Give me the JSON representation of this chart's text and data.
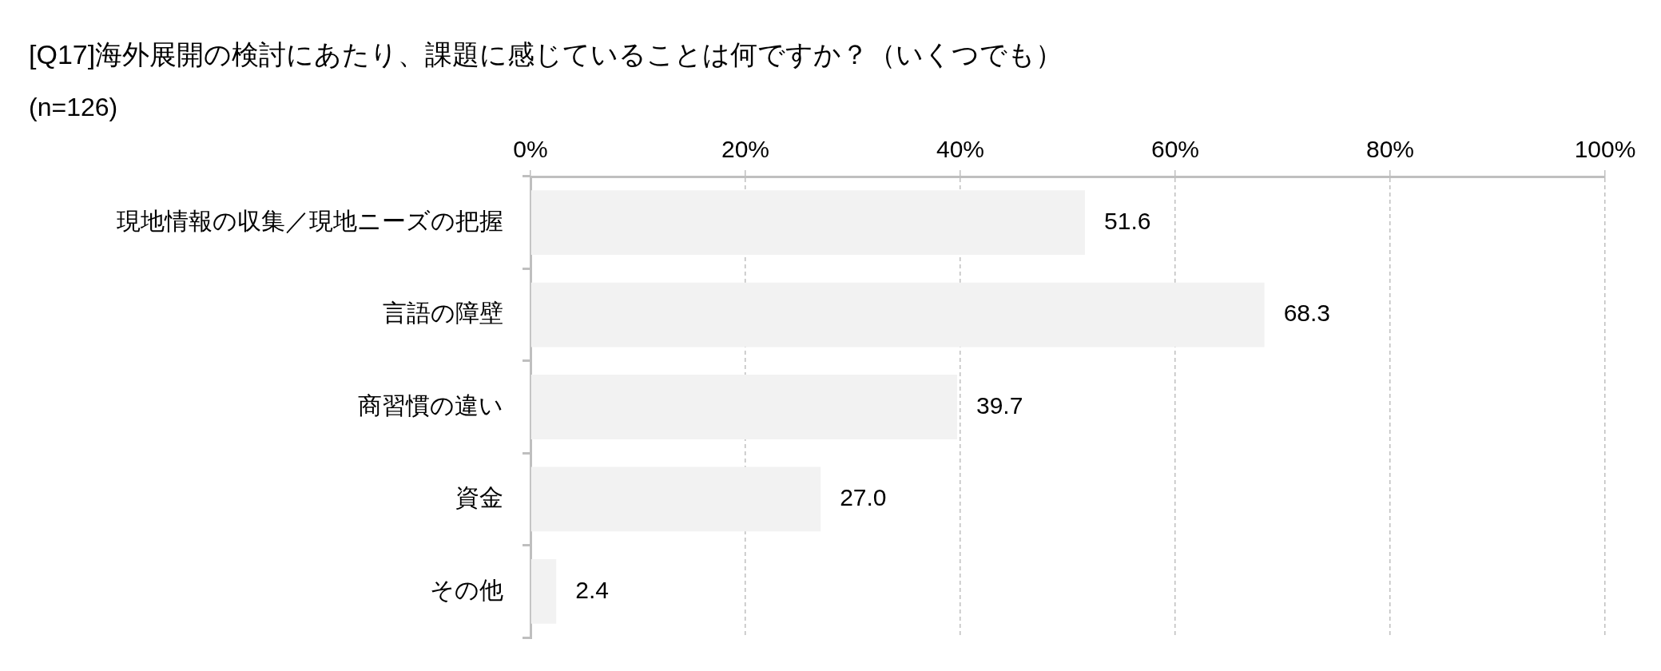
{
  "chart_data": {
    "type": "bar",
    "orientation": "horizontal",
    "title": "[Q17]海外展開の検討にあたり、課題に感じていることは何ですか？（いくつでも）",
    "subtitle": "(n=126)",
    "categories": [
      "現地情報の収集／現地ニーズの把握",
      "言語の障壁",
      "商習慣の違い",
      "資金",
      "その他"
    ],
    "values": [
      51.6,
      68.3,
      39.7,
      27.0,
      2.4
    ],
    "value_labels": [
      "51.6",
      "68.3",
      "39.7",
      "27.0",
      "2.4"
    ],
    "color": "#f2f2f2",
    "xlim": [
      0,
      100
    ],
    "xticks": [
      {
        "value": 0,
        "label": "0%"
      },
      {
        "value": 20,
        "label": "20%"
      },
      {
        "value": 40,
        "label": "40%"
      },
      {
        "value": 60,
        "label": "60%"
      },
      {
        "value": 80,
        "label": "80%"
      },
      {
        "value": 100,
        "label": "100%"
      }
    ],
    "grid": "x"
  }
}
